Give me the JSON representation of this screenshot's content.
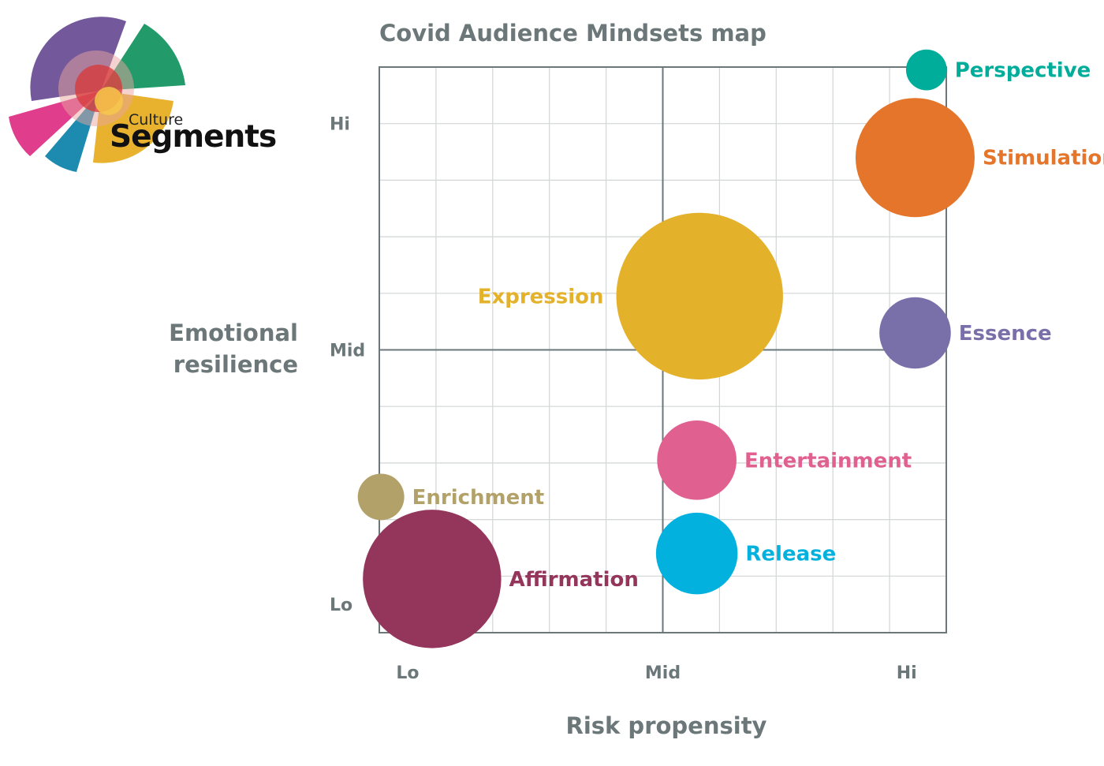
{
  "logo": {
    "line1": "Culture",
    "line2": "Segments",
    "colors": [
      "#6b4f96",
      "#239a6a",
      "#e8b22e",
      "#1d8ab0",
      "#e03e8c",
      "#d63a3a"
    ]
  },
  "chart_data": {
    "type": "scatter",
    "variant": "bubble",
    "title": "Covid Audience Mindsets map",
    "xlabel": "Risk propensity",
    "ylabel_lines": [
      "Emotional",
      "resilience"
    ],
    "xlim": [
      0,
      10
    ],
    "ylim": [
      0,
      10
    ],
    "grid": true,
    "x_ticks": [
      {
        "label": "Lo",
        "value": 0.5
      },
      {
        "label": "Mid",
        "value": 5
      },
      {
        "label": "Hi",
        "value": 9.3
      }
    ],
    "y_ticks": [
      {
        "label": "Hi",
        "value": 9.0
      },
      {
        "label": "Mid",
        "value": 5.0
      },
      {
        "label": "Lo",
        "value": 0.5
      }
    ],
    "points": [
      {
        "name": "Perspective",
        "x": 9.65,
        "y": 9.95,
        "size": 0.36,
        "color": "#00ad9a",
        "label_side": "right"
      },
      {
        "name": "Stimulation",
        "x": 9.45,
        "y": 8.4,
        "size": 1.05,
        "color": "#e4752a",
        "label_side": "right"
      },
      {
        "name": "Expression",
        "x": 5.65,
        "y": 5.95,
        "size": 1.47,
        "color": "#e4b12b",
        "label_side": "left"
      },
      {
        "name": "Essence",
        "x": 9.45,
        "y": 5.3,
        "size": 0.63,
        "color": "#7a70a9",
        "label_side": "right"
      },
      {
        "name": "Entertainment",
        "x": 5.6,
        "y": 3.05,
        "size": 0.7,
        "color": "#e06090",
        "label_side": "right"
      },
      {
        "name": "Enrichment",
        "x": 0.03,
        "y": 2.4,
        "size": 0.41,
        "color": "#b2a26a",
        "label_side": "right"
      },
      {
        "name": "Release",
        "x": 5.6,
        "y": 1.4,
        "size": 0.72,
        "color": "#02b1dd",
        "label_side": "right"
      },
      {
        "name": "Affirmation",
        "x": 0.93,
        "y": 0.95,
        "size": 1.22,
        "color": "#94365b",
        "label_side": "right"
      }
    ]
  }
}
